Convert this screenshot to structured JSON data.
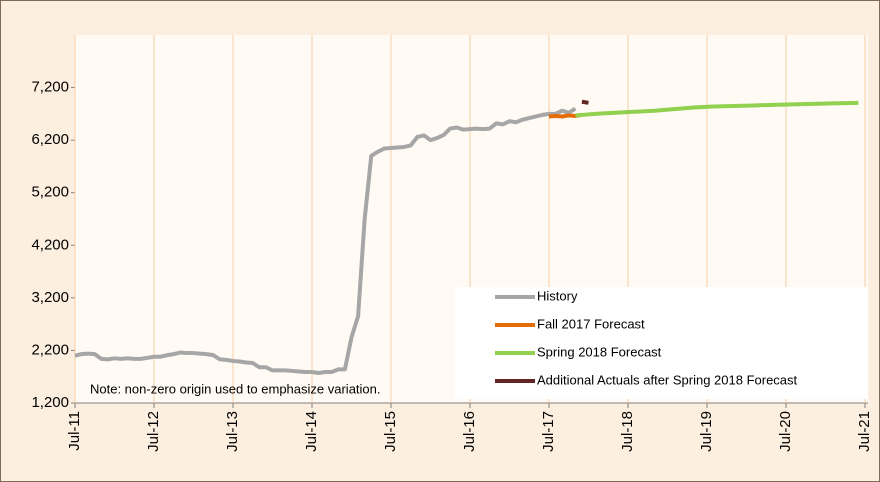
{
  "chart_data": {
    "type": "line",
    "note": "Note: non-zero origin used to emphasize variation.",
    "xlim": [
      "Jul-11",
      "Jul-21"
    ],
    "xticks": [
      "Jul-11",
      "Jul-12",
      "Jul-13",
      "Jul-14",
      "Jul-15",
      "Jul-16",
      "Jul-17",
      "Jul-18",
      "Jul-19",
      "Jul-20",
      "Jul-21"
    ],
    "ylim": [
      1200,
      8200
    ],
    "yticks": [
      {
        "value": 1200,
        "label": "1,200"
      },
      {
        "value": 2200,
        "label": "2,200"
      },
      {
        "value": 3200,
        "label": "3,200"
      },
      {
        "value": 4200,
        "label": "4,200"
      },
      {
        "value": 5200,
        "label": "5,200"
      },
      {
        "value": 6200,
        "label": "6,200"
      },
      {
        "value": 7200,
        "label": "7,200"
      }
    ],
    "grid": true,
    "legend": "lower right",
    "series": [
      {
        "name": "History",
        "color": "#a6a6a6",
        "x": [
          "Jul-11",
          "Aug-11",
          "Sep-11",
          "Oct-11",
          "Nov-11",
          "Dec-11",
          "Jan-12",
          "Feb-12",
          "Mar-12",
          "Apr-12",
          "May-12",
          "Jun-12",
          "Jul-12",
          "Aug-12",
          "Sep-12",
          "Oct-12",
          "Nov-12",
          "Dec-12",
          "Jan-13",
          "Feb-13",
          "Mar-13",
          "Apr-13",
          "May-13",
          "Jun-13",
          "Jul-13",
          "Aug-13",
          "Sep-13",
          "Oct-13",
          "Nov-13",
          "Dec-13",
          "Jan-14",
          "Feb-14",
          "Mar-14",
          "Apr-14",
          "May-14",
          "Jun-14",
          "Jul-14",
          "Aug-14",
          "Sep-14",
          "Oct-14",
          "Nov-14",
          "Dec-14",
          "Jan-15",
          "Feb-15",
          "Mar-15",
          "Apr-15",
          "May-15",
          "Jun-15",
          "Jul-15",
          "Aug-15",
          "Sep-15",
          "Oct-15",
          "Nov-15",
          "Dec-15",
          "Jan-16",
          "Feb-16",
          "Mar-16",
          "Apr-16",
          "May-16",
          "Jun-16",
          "Jul-16",
          "Aug-16",
          "Sep-16",
          "Oct-16",
          "Nov-16",
          "Dec-16",
          "Jan-17",
          "Feb-17",
          "Mar-17",
          "Apr-17",
          "May-17",
          "Jun-17",
          "Jul-17",
          "Aug-17",
          "Sep-17",
          "Oct-17",
          "Nov-17"
        ],
        "values": [
          2100,
          2130,
          2140,
          2130,
          2040,
          2030,
          2050,
          2040,
          2050,
          2040,
          2040,
          2060,
          2080,
          2080,
          2110,
          2130,
          2160,
          2150,
          2150,
          2140,
          2130,
          2110,
          2030,
          2020,
          2000,
          1990,
          1970,
          1960,
          1880,
          1880,
          1820,
          1820,
          1820,
          1810,
          1800,
          1790,
          1790,
          1770,
          1790,
          1790,
          1840,
          1840,
          2450,
          2850,
          4700,
          5900,
          5980,
          6040,
          6050,
          6060,
          6070,
          6100,
          6260,
          6290,
          6200,
          6240,
          6300,
          6420,
          6440,
          6400,
          6410,
          6420,
          6410,
          6420,
          6520,
          6500,
          6560,
          6540,
          6590,
          6620,
          6650,
          6680,
          6700,
          6700,
          6760,
          6720,
          6800
        ]
      },
      {
        "name": "Fall 2017 Forecast",
        "color": "#e36c09",
        "x": [
          "Jul-17",
          "Aug-17",
          "Sep-17",
          "Oct-17",
          "Nov-17",
          "Dec-17"
        ],
        "values": [
          6650,
          6660,
          6650,
          6670,
          6660,
          6680
        ]
      },
      {
        "name": "Spring 2018 Forecast",
        "color": "#92d050",
        "x": [
          "Nov-17",
          "Feb-18",
          "May-18",
          "Aug-18",
          "Nov-18",
          "Feb-19",
          "May-19",
          "Aug-19",
          "Nov-19",
          "Feb-20",
          "May-20",
          "Aug-20",
          "Nov-20",
          "Feb-21",
          "Jun-21"
        ],
        "values": [
          6670,
          6700,
          6720,
          6740,
          6760,
          6790,
          6820,
          6840,
          6850,
          6860,
          6870,
          6880,
          6890,
          6900,
          6910
        ]
      },
      {
        "name": "Additional Actuals after Spring 2018 Forecast",
        "color": "#632523",
        "x": [
          "Dec-17",
          "Jan-18"
        ],
        "values": [
          6930,
          6910
        ]
      }
    ]
  }
}
